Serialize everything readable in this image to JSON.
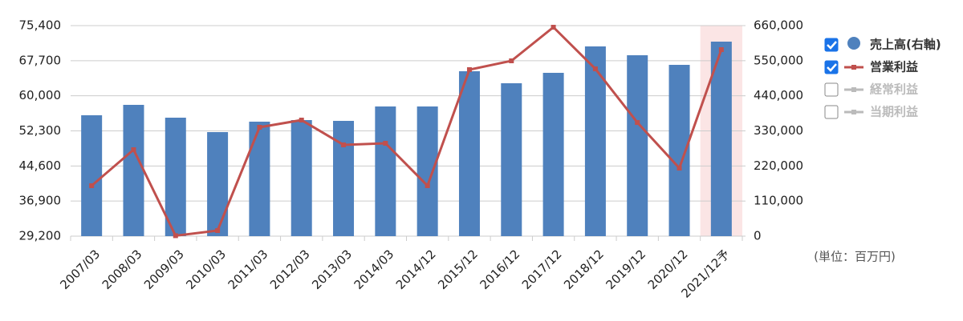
{
  "chart_data": {
    "type": "bar-line",
    "categories": [
      "2007/03",
      "2008/03",
      "2009/03",
      "2010/03",
      "2011/03",
      "2012/03",
      "2013/03",
      "2014/03",
      "2014/12",
      "2015/12",
      "2016/12",
      "2017/12",
      "2018/12",
      "2019/12",
      "2020/12",
      "2021/12予"
    ],
    "series": [
      {
        "name": "売上高(右軸)",
        "type": "bar",
        "axis": "y2",
        "color": "#4f81bd",
        "checked": true,
        "values": [
          379000,
          411600,
          371400,
          326200,
          358900,
          363900,
          361400,
          406500,
          406500,
          517000,
          479300,
          512000,
          594800,
          567100,
          537000,
          609800
        ]
      },
      {
        "name": "営業利益",
        "type": "line",
        "color": "#c0504d",
        "checked": true,
        "values": [
          40270,
          48170,
          29300,
          30430,
          53090,
          54670,
          49230,
          49580,
          40270,
          65740,
          67670,
          75050,
          65910,
          54140,
          44130,
          70130
        ]
      }
    ],
    "hidden_series": [
      {
        "name": "経常利益",
        "checked": false
      },
      {
        "name": "当期利益",
        "checked": false
      }
    ],
    "ylim": [
      29200,
      75400
    ],
    "yticks": [
      {
        "value": 29200,
        "label": "29,200"
      },
      {
        "value": 36900,
        "label": "36,900"
      },
      {
        "value": 44600,
        "label": "44,600"
      },
      {
        "value": 52300,
        "label": "52,300"
      },
      {
        "value": 60000,
        "label": "60,000"
      },
      {
        "value": 67700,
        "label": "67,700"
      },
      {
        "value": 75400,
        "label": "75,400"
      }
    ],
    "y2lim": [
      0,
      660000
    ],
    "y2ticks": [
      0,
      {
        "value": 110000,
        "label": "110,000"
      },
      {
        "value": 220000,
        "label": "220,000"
      },
      {
        "value": 330000,
        "label": "330,000"
      },
      {
        "value": 440000,
        "label": "440,000"
      },
      {
        "value": 550000,
        "label": "550,000"
      },
      {
        "value": 660000,
        "label": "660,000"
      }
    ],
    "grid": true,
    "forecast_highlight_color": "#fbe5e5",
    "unit_note": "(単位：百万円)"
  }
}
